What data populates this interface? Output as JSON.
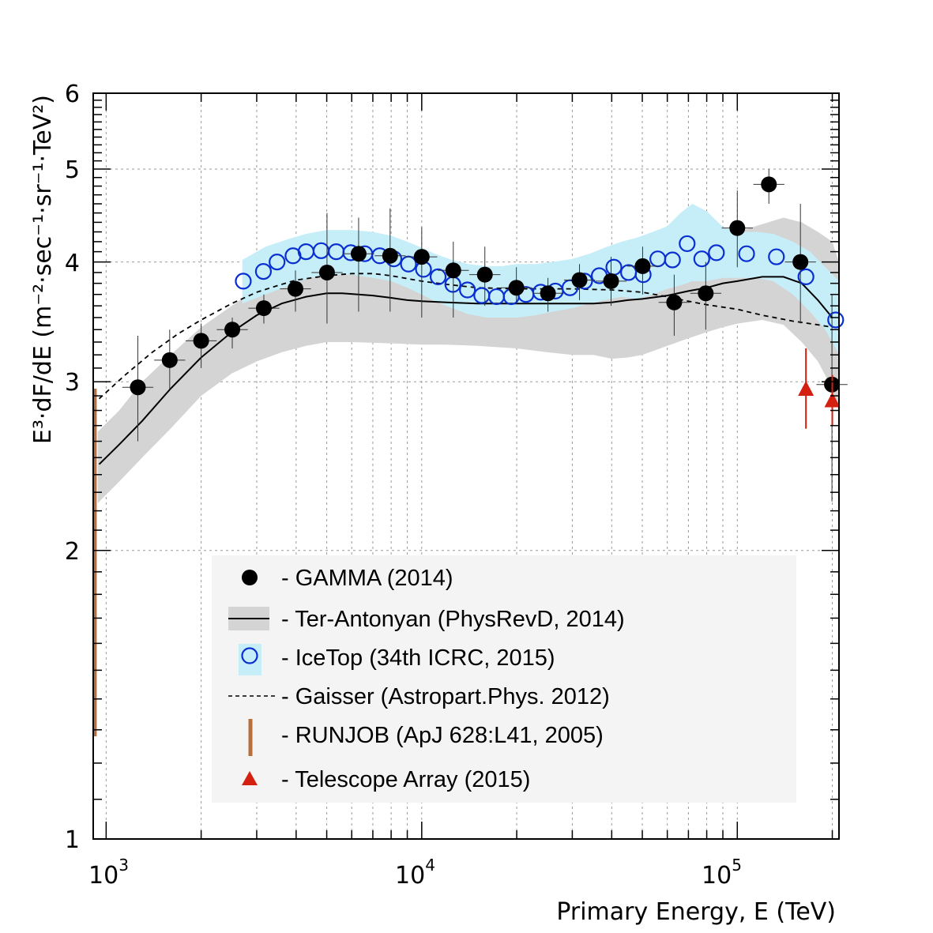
{
  "chart_data": {
    "type": "scatter",
    "x_scale": "log",
    "y_scale": "log",
    "xlim": [
      910,
      210000
    ],
    "ylim": [
      1,
      6
    ],
    "xlabel": "Primary Energy, E (TeV)",
    "ylabel": "E³·dF/dE   (m⁻²·sec⁻¹·sr⁻¹·TeV²)",
    "y_tick_labels": [
      "1",
      "2",
      "3",
      "4",
      "5",
      "6"
    ],
    "x_tick_labels": [
      {
        "base": "10",
        "exp": "3"
      },
      {
        "base": "10",
        "exp": "4"
      },
      {
        "base": "10",
        "exp": "5"
      }
    ],
    "grid": true,
    "legend_position": "bottom-center",
    "colors": {
      "gamma": "#000000",
      "icetop": "#0a2fd0",
      "icetop_band": "#c6eef8",
      "ter_band": "#d4d4d4",
      "runjob": "#b8703a",
      "ta": "#d42010"
    },
    "legend": [
      {
        "label": "- GAMMA (2014)",
        "marker": "filled-circle"
      },
      {
        "label": "- Ter-Antonyan (PhysRevD, 2014)",
        "marker": "line-with-band"
      },
      {
        "label": "- IceTop (34th ICRC, 2015)",
        "marker": "open-circle-with-band"
      },
      {
        "label": "- Gaisser (Astropart.Phys. 2012)",
        "marker": "dashed-line"
      },
      {
        "label": "- RUNJOB (ApJ 628:L41, 2005)",
        "marker": "vertical-bar"
      },
      {
        "label": "- Telescope Array (2015)",
        "marker": "triangle"
      }
    ],
    "series": [
      {
        "name": "GAMMA (2014)",
        "kind": "points",
        "points": [
          {
            "x": 1260,
            "y": 2.96,
            "lo": 2.6,
            "hi": 3.35
          },
          {
            "x": 1590,
            "y": 3.16,
            "lo": 2.95,
            "hi": 3.4
          },
          {
            "x": 2000,
            "y": 3.31,
            "lo": 3.1,
            "hi": 3.45
          },
          {
            "x": 2510,
            "y": 3.4,
            "lo": 3.25,
            "hi": 3.5
          },
          {
            "x": 3160,
            "y": 3.58,
            "lo": 3.45,
            "hi": 3.7
          },
          {
            "x": 3980,
            "y": 3.75,
            "lo": 3.55,
            "hi": 3.92
          },
          {
            "x": 5010,
            "y": 3.9,
            "lo": 3.45,
            "hi": 4.5
          },
          {
            "x": 6310,
            "y": 4.08,
            "lo": 3.55,
            "hi": 4.45
          },
          {
            "x": 7940,
            "y": 4.06,
            "lo": 3.55,
            "hi": 4.55
          },
          {
            "x": 10000,
            "y": 4.05,
            "lo": 3.5,
            "hi": 4.35
          },
          {
            "x": 12590,
            "y": 3.92,
            "lo": 3.5,
            "hi": 4.2
          },
          {
            "x": 15850,
            "y": 3.88,
            "lo": 3.6,
            "hi": 4.15
          },
          {
            "x": 19950,
            "y": 3.76,
            "lo": 3.62,
            "hi": 3.95
          },
          {
            "x": 25120,
            "y": 3.71,
            "lo": 3.55,
            "hi": 3.85
          },
          {
            "x": 31620,
            "y": 3.83,
            "lo": 3.65,
            "hi": 3.98
          },
          {
            "x": 39810,
            "y": 3.82,
            "lo": 3.6,
            "hi": 4.05
          },
          {
            "x": 50120,
            "y": 3.96,
            "lo": 3.7,
            "hi": 4.15
          },
          {
            "x": 63100,
            "y": 3.63,
            "lo": 3.35,
            "hi": 3.88
          },
          {
            "x": 79430,
            "y": 3.71,
            "lo": 3.4,
            "hi": 4.0
          },
          {
            "x": 100000,
            "y": 4.34,
            "lo": 3.95,
            "hi": 4.75
          },
          {
            "x": 125900,
            "y": 4.82,
            "lo": 4.6,
            "hi": 5.0
          },
          {
            "x": 158500,
            "y": 4.0,
            "lo": 3.45,
            "hi": 4.6
          },
          {
            "x": 199500,
            "y": 2.98,
            "lo": 2.25,
            "hi": 3.7
          }
        ]
      },
      {
        "name": "IceTop (34th ICRC, 2015)",
        "kind": "points",
        "points": [
          {
            "x": 2720,
            "y": 3.82
          },
          {
            "x": 3150,
            "y": 3.91
          },
          {
            "x": 3480,
            "y": 4.0
          },
          {
            "x": 3910,
            "y": 4.06
          },
          {
            "x": 4300,
            "y": 4.1
          },
          {
            "x": 4800,
            "y": 4.11
          },
          {
            "x": 5360,
            "y": 4.1
          },
          {
            "x": 5960,
            "y": 4.09
          },
          {
            "x": 6600,
            "y": 4.08
          },
          {
            "x": 7360,
            "y": 4.06
          },
          {
            "x": 8160,
            "y": 4.03
          },
          {
            "x": 9080,
            "y": 3.98
          },
          {
            "x": 10130,
            "y": 3.93
          },
          {
            "x": 11270,
            "y": 3.86
          },
          {
            "x": 12550,
            "y": 3.79
          },
          {
            "x": 13960,
            "y": 3.74
          },
          {
            "x": 15500,
            "y": 3.69
          },
          {
            "x": 17260,
            "y": 3.68
          },
          {
            "x": 19220,
            "y": 3.68
          },
          {
            "x": 21390,
            "y": 3.7
          },
          {
            "x": 23830,
            "y": 3.72
          },
          {
            "x": 26510,
            "y": 3.73
          },
          {
            "x": 29500,
            "y": 3.76
          },
          {
            "x": 32810,
            "y": 3.82
          },
          {
            "x": 36530,
            "y": 3.87
          },
          {
            "x": 40630,
            "y": 3.95
          },
          {
            "x": 45230,
            "y": 3.9
          },
          {
            "x": 50310,
            "y": 3.88
          },
          {
            "x": 55980,
            "y": 4.03
          },
          {
            "x": 62310,
            "y": 4.02
          },
          {
            "x": 69350,
            "y": 4.18
          },
          {
            "x": 77160,
            "y": 4.03
          },
          {
            "x": 85850,
            "y": 4.09
          },
          {
            "x": 107000,
            "y": 4.08
          },
          {
            "x": 133000,
            "y": 4.05
          },
          {
            "x": 165000,
            "y": 3.86
          },
          {
            "x": 205000,
            "y": 3.48
          }
        ]
      },
      {
        "name": "IceTop band",
        "kind": "band",
        "x": [
          2700,
          3200,
          3800,
          4300,
          5000,
          6000,
          7000,
          8000,
          9000,
          10000,
          11000,
          12500,
          14000,
          16000,
          18000,
          20000,
          23000,
          26000,
          30000,
          34000,
          38000,
          43000,
          48000,
          54000,
          60000,
          66000,
          72000,
          80000,
          90000,
          100000,
          115000,
          130000,
          150000,
          170000,
          190000,
          215000
        ],
        "lo": [
          3.62,
          3.7,
          3.78,
          3.84,
          3.88,
          3.88,
          3.85,
          3.82,
          3.76,
          3.7,
          3.64,
          3.58,
          3.53,
          3.5,
          3.5,
          3.5,
          3.52,
          3.55,
          3.58,
          3.62,
          3.65,
          3.68,
          3.66,
          3.7,
          3.75,
          3.78,
          3.82,
          3.82,
          3.85,
          3.85,
          3.85,
          3.82,
          3.7,
          3.55,
          3.4,
          3.16
        ],
        "hi": [
          4.02,
          4.15,
          4.23,
          4.28,
          4.32,
          4.32,
          4.3,
          4.26,
          4.2,
          4.14,
          4.08,
          4.02,
          3.98,
          3.96,
          3.96,
          3.98,
          3.98,
          4.0,
          4.03,
          4.08,
          4.14,
          4.2,
          4.24,
          4.3,
          4.36,
          4.5,
          4.6,
          4.52,
          4.35,
          4.3,
          4.3,
          4.28,
          4.2,
          4.1,
          3.95,
          3.79
        ]
      },
      {
        "name": "Ter-Antonyan (PhysRevD, 2014)",
        "kind": "line",
        "x": [
          950,
          1100,
          1300,
          1600,
          2000,
          2500,
          3000,
          3600,
          4300,
          5000,
          5600,
          6300,
          7000,
          8000,
          9000,
          10000,
          12000,
          15000,
          20000,
          25000,
          30000,
          35000,
          40000,
          45000,
          50000,
          60000,
          70000,
          80000,
          90000,
          100000,
          120000,
          140000,
          160000,
          180000,
          200000
        ],
        "y": [
          2.46,
          2.58,
          2.73,
          2.95,
          3.18,
          3.38,
          3.52,
          3.62,
          3.68,
          3.71,
          3.71,
          3.7,
          3.69,
          3.67,
          3.65,
          3.64,
          3.63,
          3.62,
          3.62,
          3.62,
          3.62,
          3.62,
          3.63,
          3.65,
          3.66,
          3.69,
          3.73,
          3.76,
          3.8,
          3.82,
          3.86,
          3.86,
          3.8,
          3.65,
          3.5
        ]
      },
      {
        "name": "Ter-Antonyan band",
        "kind": "band",
        "x": [
          940,
          1100,
          1300,
          1600,
          2000,
          2500,
          3000,
          3600,
          4300,
          5000,
          6000,
          8000,
          10000,
          12000,
          15000,
          20000,
          25000,
          30000,
          35000,
          40000,
          45000,
          50000,
          60000,
          70000,
          80000,
          90000,
          100000,
          120000,
          140000,
          160000,
          180000,
          200000,
          210000
        ],
        "lo": [
          2.24,
          2.36,
          2.5,
          2.68,
          2.9,
          3.06,
          3.15,
          3.22,
          3.27,
          3.3,
          3.3,
          3.29,
          3.28,
          3.28,
          3.27,
          3.25,
          3.22,
          3.2,
          3.2,
          3.17,
          3.18,
          3.2,
          3.27,
          3.33,
          3.38,
          3.42,
          3.45,
          3.48,
          3.44,
          3.3,
          3.15,
          2.95,
          2.8
        ],
        "hi": [
          2.66,
          2.8,
          3.0,
          3.2,
          3.42,
          3.6,
          3.75,
          3.85,
          3.93,
          3.97,
          3.97,
          3.95,
          3.92,
          3.88,
          3.85,
          3.83,
          3.82,
          3.82,
          3.85,
          3.88,
          3.92,
          3.97,
          4.05,
          4.12,
          4.2,
          4.27,
          4.3,
          4.38,
          4.45,
          4.4,
          4.3,
          4.2,
          4.0
        ]
      },
      {
        "name": "Gaisser (Astropart.Phys. 2012)",
        "kind": "dashed",
        "x": [
          950,
          1150,
          1400,
          1700,
          2000,
          2500,
          3000,
          3500,
          4000,
          5000,
          6000,
          7000,
          8000,
          10000,
          12000,
          15000,
          20000,
          25000,
          30000,
          40000,
          50000,
          60000,
          70000,
          80000,
          100000,
          120000,
          150000,
          180000,
          200000
        ],
        "y": [
          2.88,
          3.05,
          3.22,
          3.37,
          3.48,
          3.62,
          3.72,
          3.78,
          3.83,
          3.87,
          3.89,
          3.89,
          3.87,
          3.82,
          3.79,
          3.76,
          3.75,
          3.75,
          3.75,
          3.74,
          3.72,
          3.68,
          3.64,
          3.61,
          3.57,
          3.52,
          3.47,
          3.44,
          3.42
        ]
      },
      {
        "name": "RUNJOB (ApJ 628:L41, 2005)",
        "kind": "vertical-bar",
        "x": 920,
        "lo": 1.28,
        "hi": 2.95
      },
      {
        "name": "Telescope Array (2015)",
        "kind": "points",
        "points": [
          {
            "x": 165000,
            "y": 2.95,
            "lo": 2.68,
            "hi": 3.25
          },
          {
            "x": 200000,
            "y": 2.87,
            "lo": 2.7,
            "hi": 3.05
          }
        ]
      }
    ]
  }
}
